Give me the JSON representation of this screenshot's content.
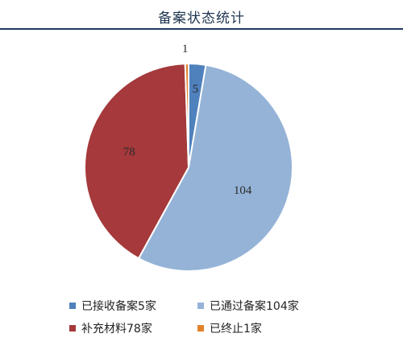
{
  "header": {
    "title": "备案状态统计"
  },
  "chart_data": {
    "type": "pie",
    "title": "备案状态统计",
    "slices": [
      {
        "name": "已接收备案5家",
        "value": 5,
        "label": "5",
        "color": "#4f81bd"
      },
      {
        "name": "已通过备案104家",
        "value": 104,
        "label": "104",
        "color": "#95b3d7"
      },
      {
        "name": "补充材料78家",
        "value": 78,
        "label": "78",
        "color": "#a5393b"
      },
      {
        "name": "已终止1家",
        "value": 1,
        "label": "1",
        "color": "#e4822c"
      }
    ],
    "start": "top",
    "direction": "clockwise",
    "legend_position": "bottom"
  }
}
